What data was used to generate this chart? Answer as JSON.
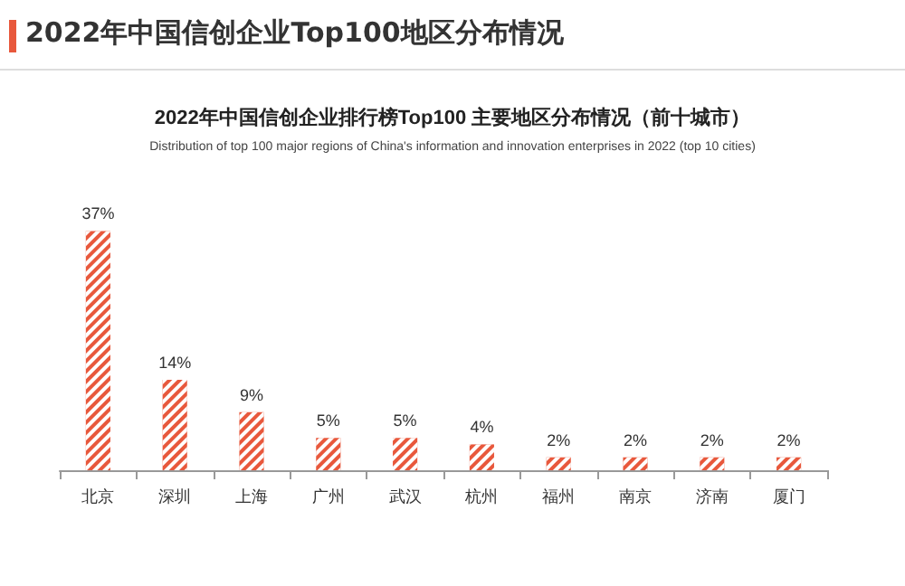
{
  "chart_data": {
    "type": "bar",
    "title": "2022年中国信创企业Top100地区分布情况",
    "subtitle": "2022年中国信创企业排行榜Top100 主要地区分布情况（前十城市）",
    "annotations": [
      "Distribution of top 100 major regions of China's information and innovation enterprises in 2022 (top 10 cities)"
    ],
    "categories": [
      "北京",
      "深圳",
      "上海",
      "广州",
      "武汉",
      "杭州",
      "福州",
      "南京",
      "济南",
      "厦门"
    ],
    "values": [
      37,
      14,
      9,
      5,
      5,
      4,
      2,
      2,
      2,
      2
    ],
    "value_labels": [
      "37%",
      "14%",
      "9%",
      "5%",
      "5%",
      "4%",
      "2%",
      "2%",
      "2%",
      "2%"
    ],
    "color": "#e8583c"
  }
}
